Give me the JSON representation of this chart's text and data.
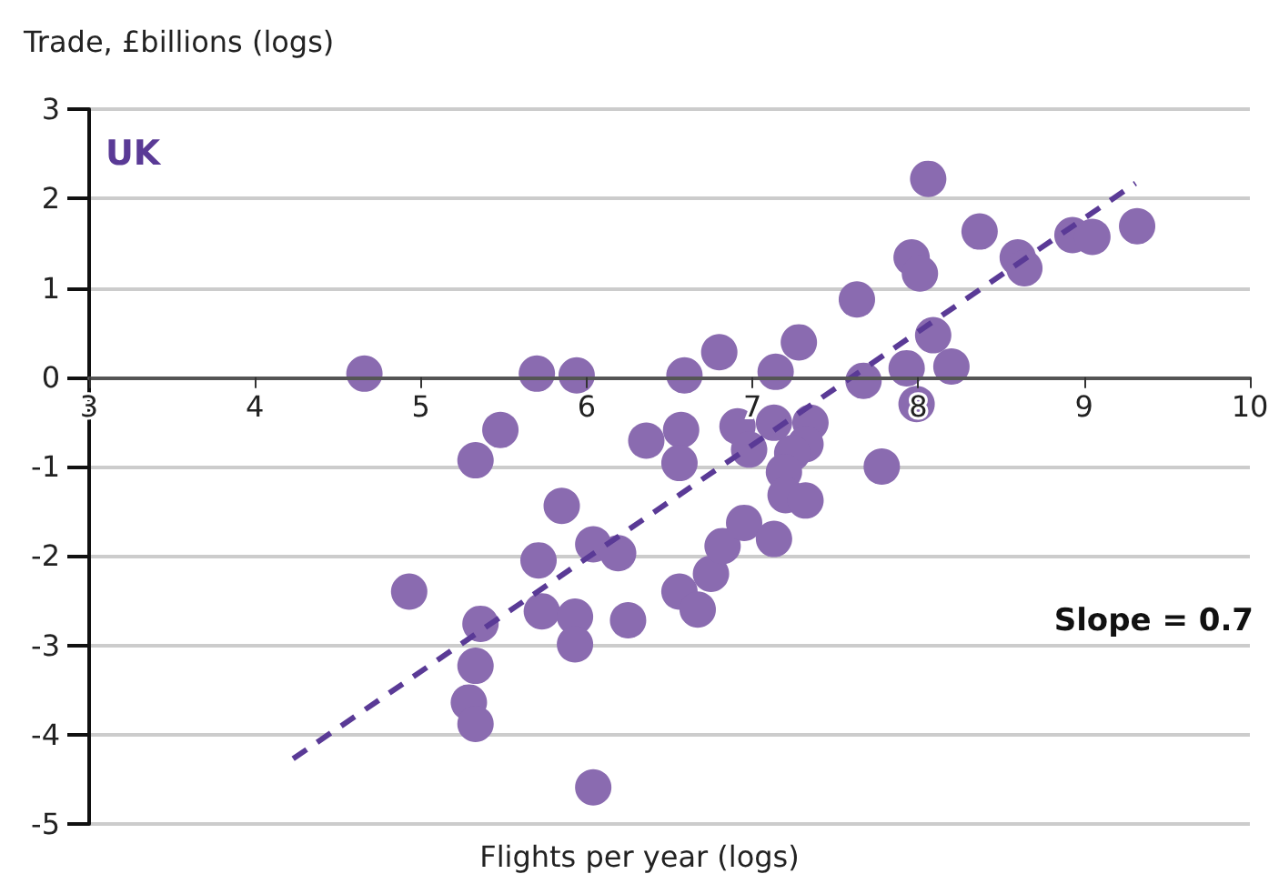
{
  "chart_data": {
    "type": "scatter",
    "xlabel": "Flights per year (logs)",
    "ylabel": "Trade, £billions (logs)",
    "annotations": [
      "UK",
      "Slope = 0.7"
    ],
    "series": [
      {
        "type": "scatter",
        "color": "#8a6bb0",
        "marker": "circle",
        "x": [
          4.66,
          5.7,
          5.94,
          6.59,
          6.8,
          5.48,
          5.33,
          6.36,
          6.57,
          6.56,
          5.85,
          5.71,
          6.04,
          6.19,
          4.93,
          5.36,
          5.73,
          5.93,
          5.93,
          6.25,
          5.33,
          5.29,
          5.33,
          6.04,
          6.56,
          6.67,
          6.75,
          6.82,
          6.95,
          7.13,
          7.14,
          7.28,
          6.91,
          6.98,
          7.13,
          7.35,
          7.32,
          7.24,
          7.19,
          7.2,
          7.32,
          7.67,
          7.63,
          7.78,
          7.93,
          7.99,
          8.09,
          8.2,
          7.96,
          8.01,
          8.06,
          8.37,
          8.6,
          8.64,
          8.93,
          9.05,
          9.32
        ],
        "values": [
          0.04,
          0.04,
          0.02,
          0.02,
          0.28,
          -0.59,
          -0.93,
          -0.71,
          -0.59,
          -0.96,
          -1.44,
          -2.05,
          -1.87,
          -1.97,
          -2.4,
          -2.76,
          -2.62,
          -2.68,
          -2.99,
          -2.72,
          -3.23,
          -3.64,
          -3.88,
          -4.59,
          -2.4,
          -2.6,
          -2.2,
          -1.89,
          -1.63,
          -1.81,
          0.06,
          0.39,
          -0.55,
          -0.81,
          -0.51,
          -0.51,
          -0.75,
          -0.85,
          -1.06,
          -1.32,
          -1.38,
          -0.04,
          0.87,
          -1.0,
          0.1,
          -0.3,
          0.47,
          0.12,
          1.34,
          1.16,
          2.22,
          1.63,
          1.34,
          1.22,
          1.59,
          1.57,
          1.69
        ]
      },
      {
        "type": "line",
        "color": "#5a3a96",
        "line_style": "dashed",
        "marker": "none",
        "x": [
          4.23,
          9.31
        ],
        "values": [
          -4.27,
          2.17
        ]
      }
    ],
    "xlim": [
      3,
      10
    ],
    "xticks": [
      3,
      4,
      5,
      6,
      7,
      8,
      9,
      10
    ],
    "ylim": [
      -5,
      3
    ],
    "yticks": [
      -5,
      -4,
      -3,
      -2,
      -1,
      0,
      1,
      2,
      3
    ],
    "grid": "y"
  }
}
